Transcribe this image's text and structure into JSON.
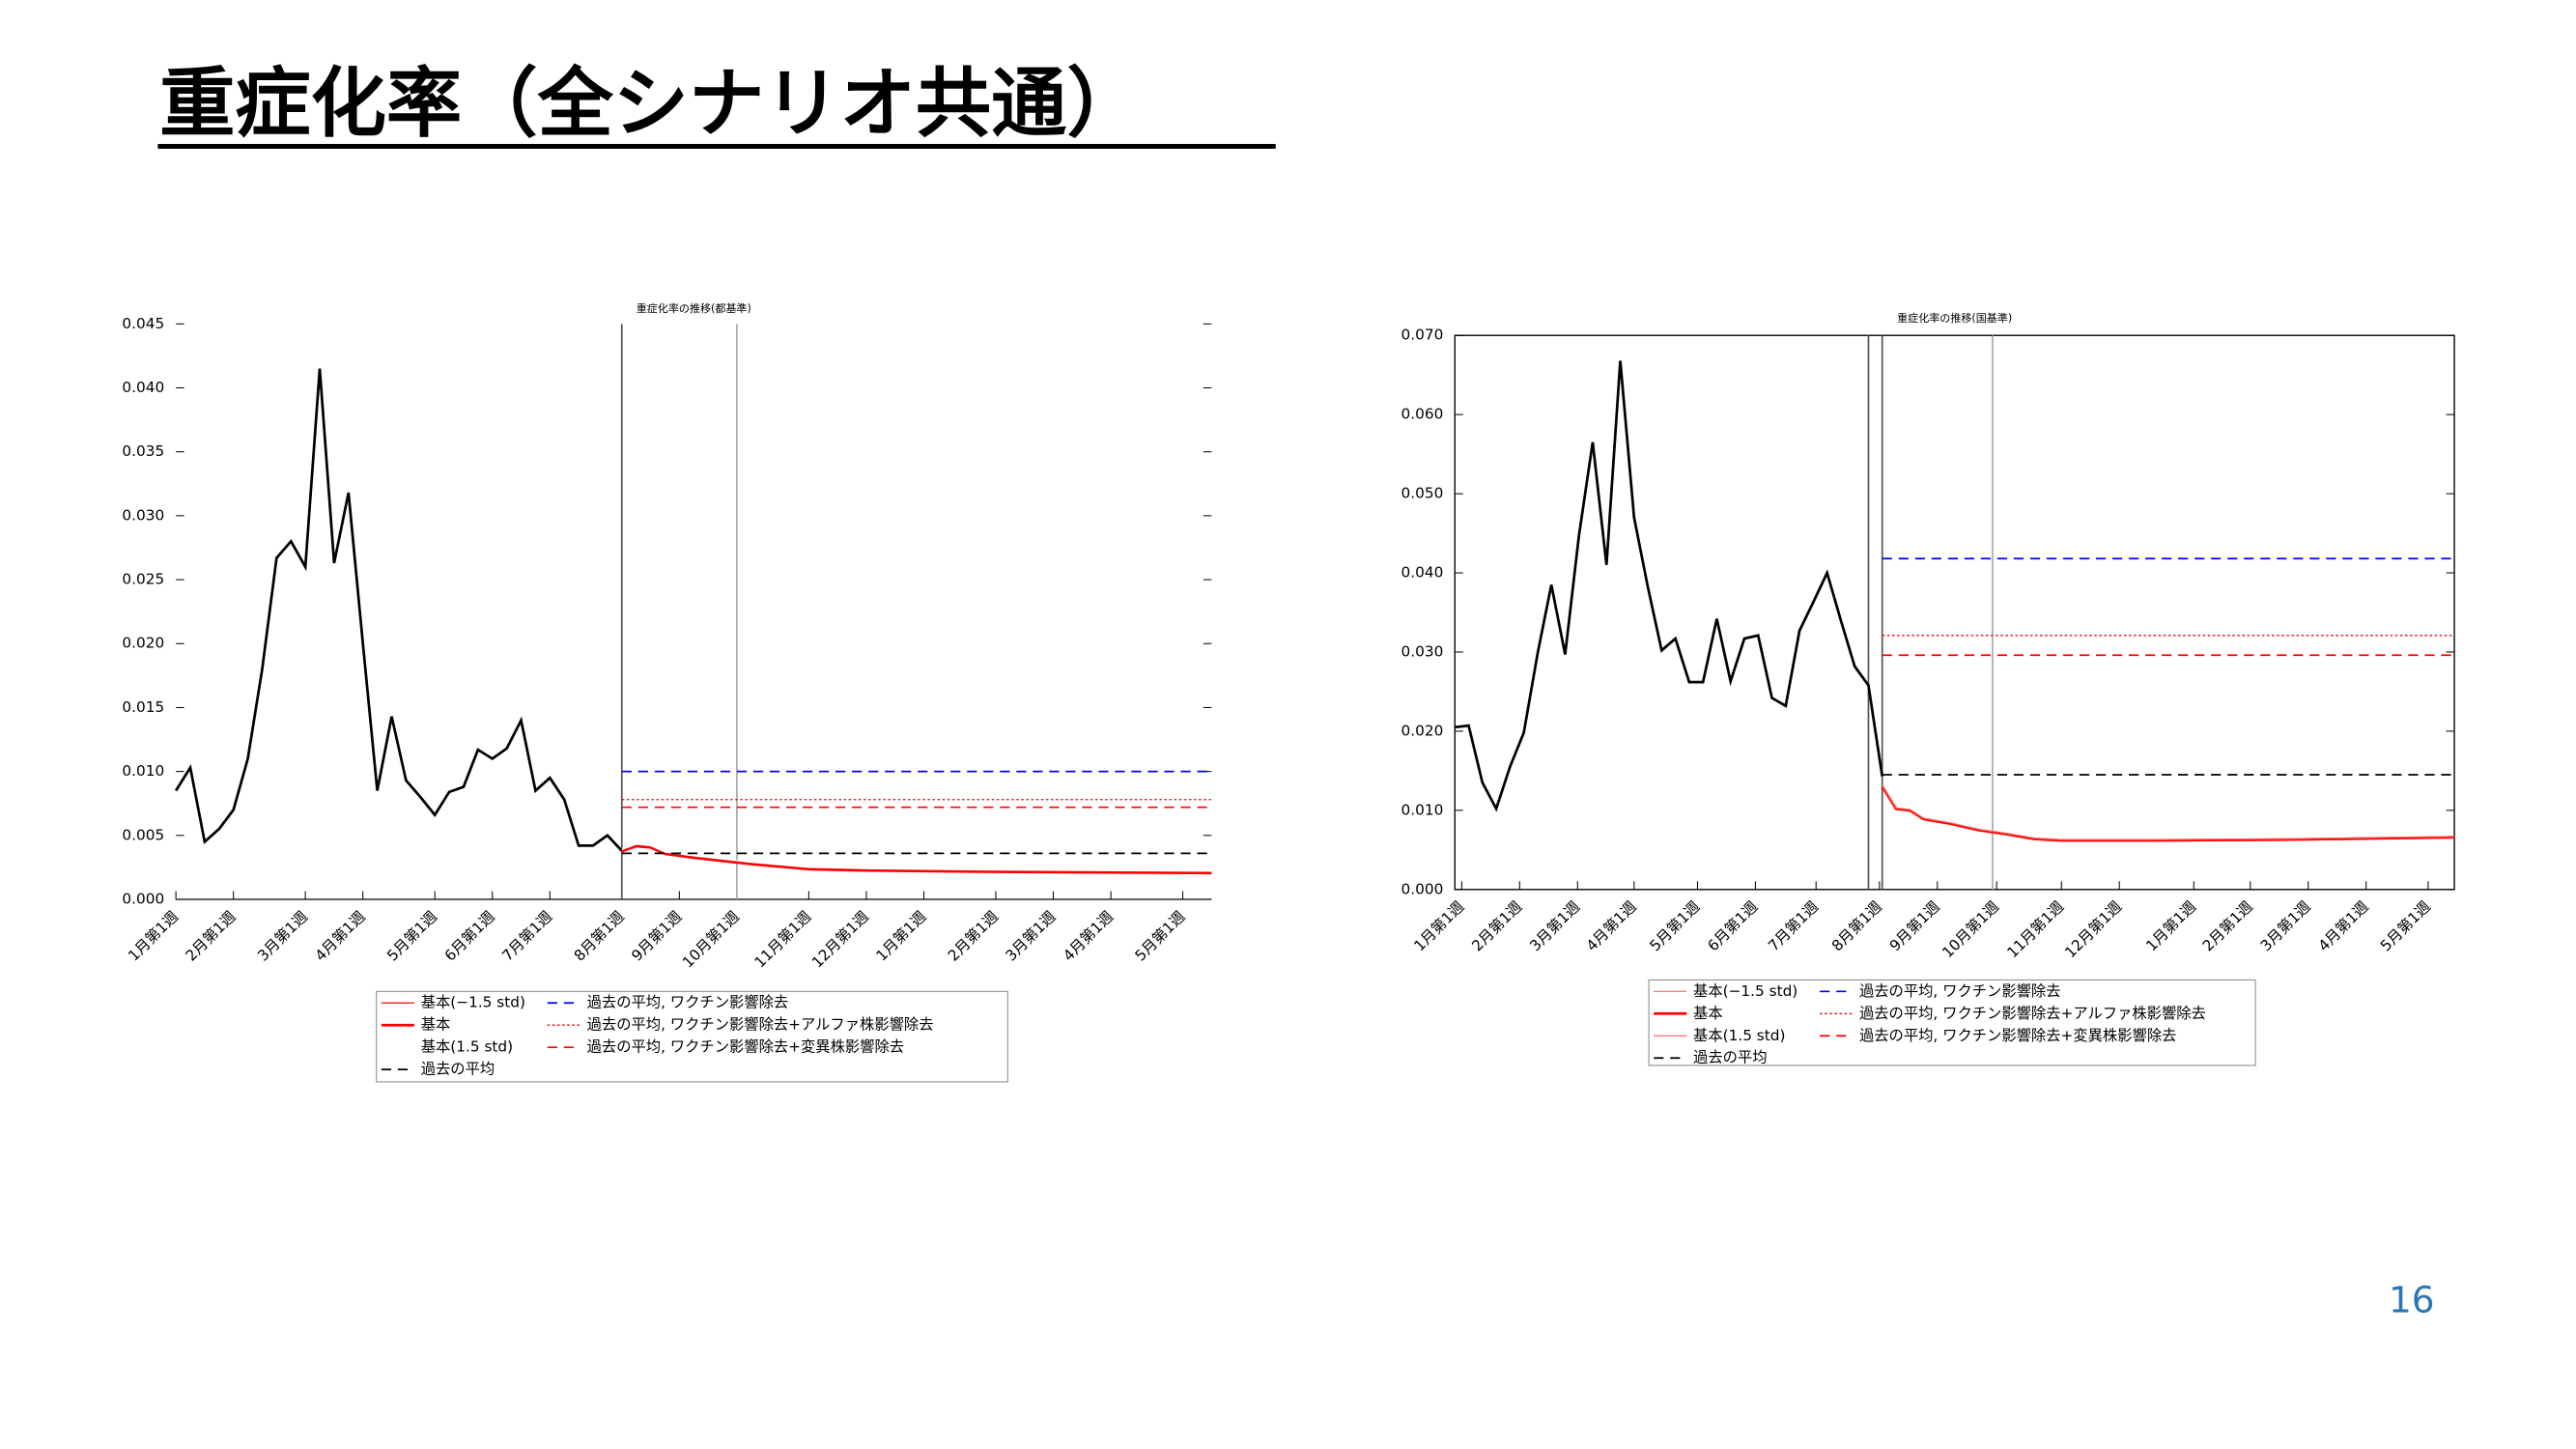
{
  "header": {
    "title": "重症化率（全シナリオ共通）",
    "page_number": "16"
  },
  "chart_data": [
    {
      "type": "line",
      "title": "重症化率の推移(都基準)",
      "xlim": [
        0,
        72
      ],
      "xticks": [
        {
          "value": 0,
          "label": "1月第1週"
        },
        {
          "value": 4,
          "label": "2月第1週"
        },
        {
          "value": 9,
          "label": "3月第1週"
        },
        {
          "value": 13,
          "label": "4月第1週"
        },
        {
          "value": 18,
          "label": "5月第1週"
        },
        {
          "value": 22,
          "label": "6月第1週"
        },
        {
          "value": 26,
          "label": "7月第1週"
        },
        {
          "value": 31,
          "label": "8月第1週"
        },
        {
          "value": 35,
          "label": "9月第1週"
        },
        {
          "value": 39,
          "label": "10月第1週"
        },
        {
          "value": 44,
          "label": "11月第1週"
        },
        {
          "value": 48,
          "label": "12月第1週"
        },
        {
          "value": 52,
          "label": "1月第1週"
        },
        {
          "value": 57,
          "label": "2月第1週"
        },
        {
          "value": 61,
          "label": "3月第1週"
        },
        {
          "value": 65,
          "label": "4月第1週"
        },
        {
          "value": 70,
          "label": "5月第1週"
        }
      ],
      "ylim": [
        0,
        0.045
      ],
      "yticks": [
        {
          "value": 0,
          "label": "0.000"
        },
        {
          "value": 0.005,
          "label": "0.005"
        },
        {
          "value": 0.01,
          "label": "0.010"
        },
        {
          "value": 0.015,
          "label": "0.015"
        },
        {
          "value": 0.02,
          "label": "0.020"
        },
        {
          "value": 0.025,
          "label": "0.025"
        },
        {
          "value": 0.03,
          "label": "0.030"
        },
        {
          "value": 0.035,
          "label": "0.035"
        },
        {
          "value": 0.04,
          "label": "0.040"
        },
        {
          "value": 0.045,
          "label": "0.045"
        }
      ],
      "vlines": [
        31,
        39
      ],
      "frame": false,
      "series": [
        {
          "color": "#000000",
          "style": "solid",
          "x": [
            0,
            1,
            2,
            3,
            4,
            5,
            6,
            7,
            8,
            9,
            10,
            11,
            12,
            13,
            14,
            15,
            16,
            17,
            18,
            19,
            20,
            21,
            22,
            23,
            24,
            25,
            26,
            27,
            28,
            29,
            30,
            31
          ],
          "values": [
            0.0085,
            0.0103,
            0.0045,
            0.0055,
            0.007,
            0.011,
            0.018,
            0.0267,
            0.028,
            0.026,
            0.0415,
            0.0263,
            0.0318,
            0.02,
            0.0085,
            0.0143,
            0.0093,
            0.008,
            0.0066,
            0.0084,
            0.0088,
            0.0117,
            0.011,
            0.0118,
            0.014,
            0.0085,
            0.0095,
            0.0078,
            0.0042,
            0.0042,
            0.005,
            0.0038
          ]
        },
        {
          "name": "基本(−1.5 std)",
          "color": "#ff0000",
          "style": "thin",
          "x": [
            31,
            32,
            33,
            34,
            36,
            40,
            44,
            48,
            56,
            72
          ],
          "values": [
            0.0037,
            0.0041,
            0.004,
            0.0035,
            0.0032,
            0.0027,
            0.0023,
            0.0022,
            0.0021,
            0.002
          ]
        },
        {
          "name": "基本",
          "color": "#ff0000",
          "style": "solid",
          "x": [
            31,
            32,
            33,
            34,
            36,
            40,
            44,
            48,
            56,
            72
          ],
          "values": [
            0.0038,
            0.0042,
            0.0041,
            0.0036,
            0.0033,
            0.0028,
            0.0024,
            0.0023,
            0.0022,
            0.0021
          ]
        },
        {
          "name": "基本(1.5 std)",
          "color": "#ffffff",
          "style": "thin",
          "x": [
            31,
            32,
            33,
            34,
            36,
            40,
            44,
            48,
            56,
            72
          ],
          "values": [
            0.0039,
            0.0043,
            0.0042,
            0.0037,
            0.0034,
            0.0029,
            0.0025,
            0.0024,
            0.0023,
            0.0022
          ]
        },
        {
          "name": "過去の平均",
          "color": "#000000",
          "style": "dashed",
          "x": [
            31,
            72
          ],
          "values": [
            0.0036,
            0.0036
          ]
        },
        {
          "name": "過去の平均, ワクチン影響除去",
          "color": "#0000ff",
          "style": "dashed",
          "x": [
            31,
            72
          ],
          "values": [
            0.01,
            0.01
          ]
        },
        {
          "name": "過去の平均, ワクチン影響除去+アルファ株影響除去",
          "color": "#ff0000",
          "style": "dotted",
          "x": [
            31,
            72
          ],
          "values": [
            0.0078,
            0.0078
          ]
        },
        {
          "name": "過去の平均, ワクチン影響除去+変異株影響除去",
          "color": "#ff0000",
          "style": "dashed",
          "x": [
            31,
            72
          ],
          "values": [
            0.0072,
            0.0072
          ]
        }
      ]
    },
    {
      "type": "line",
      "title": "重症化率の推移(国基準)",
      "xlim": [
        0,
        72.5
      ],
      "xticks": [
        {
          "value": 0.5,
          "label": "1月第1週"
        },
        {
          "value": 4.7,
          "label": "2月第1週"
        },
        {
          "value": 8.9,
          "label": "3月第1週"
        },
        {
          "value": 13,
          "label": "4月第1週"
        },
        {
          "value": 17.6,
          "label": "5月第1週"
        },
        {
          "value": 21.8,
          "label": "6月第1週"
        },
        {
          "value": 26.2,
          "label": "7月第1週"
        },
        {
          "value": 30.8,
          "label": "8月第1週"
        },
        {
          "value": 35,
          "label": "9月第1週"
        },
        {
          "value": 39.3,
          "label": "10月第1週"
        },
        {
          "value": 44,
          "label": "11月第1週"
        },
        {
          "value": 48.2,
          "label": "12月第1週"
        },
        {
          "value": 53.6,
          "label": "1月第1週"
        },
        {
          "value": 57.7,
          "label": "2月第1週"
        },
        {
          "value": 61.9,
          "label": "3月第1週"
        },
        {
          "value": 66.1,
          "label": "4月第1週"
        },
        {
          "value": 70.6,
          "label": "5月第1週"
        }
      ],
      "ylim": [
        0,
        0.07
      ],
      "yticks": [
        {
          "value": 0,
          "label": "0.000"
        },
        {
          "value": 0.01,
          "label": "0.010"
        },
        {
          "value": 0.02,
          "label": "0.020"
        },
        {
          "value": 0.03,
          "label": "0.030"
        },
        {
          "value": 0.04,
          "label": "0.040"
        },
        {
          "value": 0.05,
          "label": "0.050"
        },
        {
          "value": 0.06,
          "label": "0.060"
        },
        {
          "value": 0.07,
          "label": "0.070"
        }
      ],
      "vlines": [
        30,
        31,
        39
      ],
      "frame": true,
      "series": [
        {
          "color": "#000000",
          "style": "solid",
          "x": [
            0,
            1,
            2,
            3,
            4,
            5,
            6,
            7,
            8,
            9,
            10,
            11,
            12,
            13,
            14,
            15,
            16,
            17,
            18,
            19,
            20,
            21,
            22,
            23,
            24,
            25,
            26,
            27,
            28,
            29,
            30,
            31
          ],
          "values": [
            0.0205,
            0.0207,
            0.0135,
            0.0102,
            0.0155,
            0.0198,
            0.0298,
            0.0385,
            0.0297,
            0.0447,
            0.0565,
            0.041,
            0.0668,
            0.047,
            0.0382,
            0.0302,
            0.0317,
            0.0262,
            0.0262,
            0.0342,
            0.0263,
            0.0317,
            0.0321,
            0.0242,
            0.0232,
            0.0327,
            0.0363,
            0.04,
            0.034,
            0.0282,
            0.0258,
            0.0143
          ]
        },
        {
          "name": "基本(−1.5 std)",
          "color": "#ff6666",
          "style": "thin",
          "x": [
            31,
            32,
            33,
            34,
            36,
            38,
            40,
            42,
            44,
            50,
            60,
            72.5
          ],
          "values": [
            0.0129,
            0.0101,
            0.0099,
            0.0088,
            0.0082,
            0.0074,
            0.0069,
            0.0063,
            0.0061,
            0.0061,
            0.0062,
            0.0065
          ]
        },
        {
          "name": "基本",
          "color": "#ff0000",
          "style": "solid",
          "x": [
            31,
            32,
            33,
            34,
            36,
            38,
            40,
            42,
            44,
            50,
            60,
            72.5
          ],
          "values": [
            0.013,
            0.0102,
            0.01,
            0.0089,
            0.0083,
            0.0075,
            0.007,
            0.0064,
            0.0062,
            0.0062,
            0.0063,
            0.0066
          ]
        },
        {
          "name": "基本(1.5 std)",
          "color": "#ff6666",
          "style": "thin",
          "x": [
            31,
            32,
            33,
            34,
            36,
            38,
            40,
            42,
            44,
            50,
            60,
            72.5
          ],
          "values": [
            0.0131,
            0.0103,
            0.0101,
            0.009,
            0.0084,
            0.0076,
            0.0071,
            0.0065,
            0.0063,
            0.0063,
            0.0064,
            0.0067
          ]
        },
        {
          "name": "過去の平均",
          "color": "#000000",
          "style": "dashed",
          "x": [
            31,
            72.5
          ],
          "values": [
            0.0145,
            0.0145
          ]
        },
        {
          "name": "過去の平均, ワクチン影響除去",
          "color": "#0000ff",
          "style": "dashed",
          "x": [
            31,
            72.5
          ],
          "values": [
            0.0418,
            0.0418
          ]
        },
        {
          "name": "過去の平均, ワクチン影響除去+アルファ株影響除去",
          "color": "#ff0000",
          "style": "dotted",
          "x": [
            31,
            72.5
          ],
          "values": [
            0.0321,
            0.0321
          ]
        },
        {
          "name": "過去の平均, ワクチン影響除去+変異株影響除去",
          "color": "#ff0000",
          "style": "dashed",
          "x": [
            31,
            72.5
          ],
          "values": [
            0.0296,
            0.0296
          ]
        }
      ]
    }
  ]
}
